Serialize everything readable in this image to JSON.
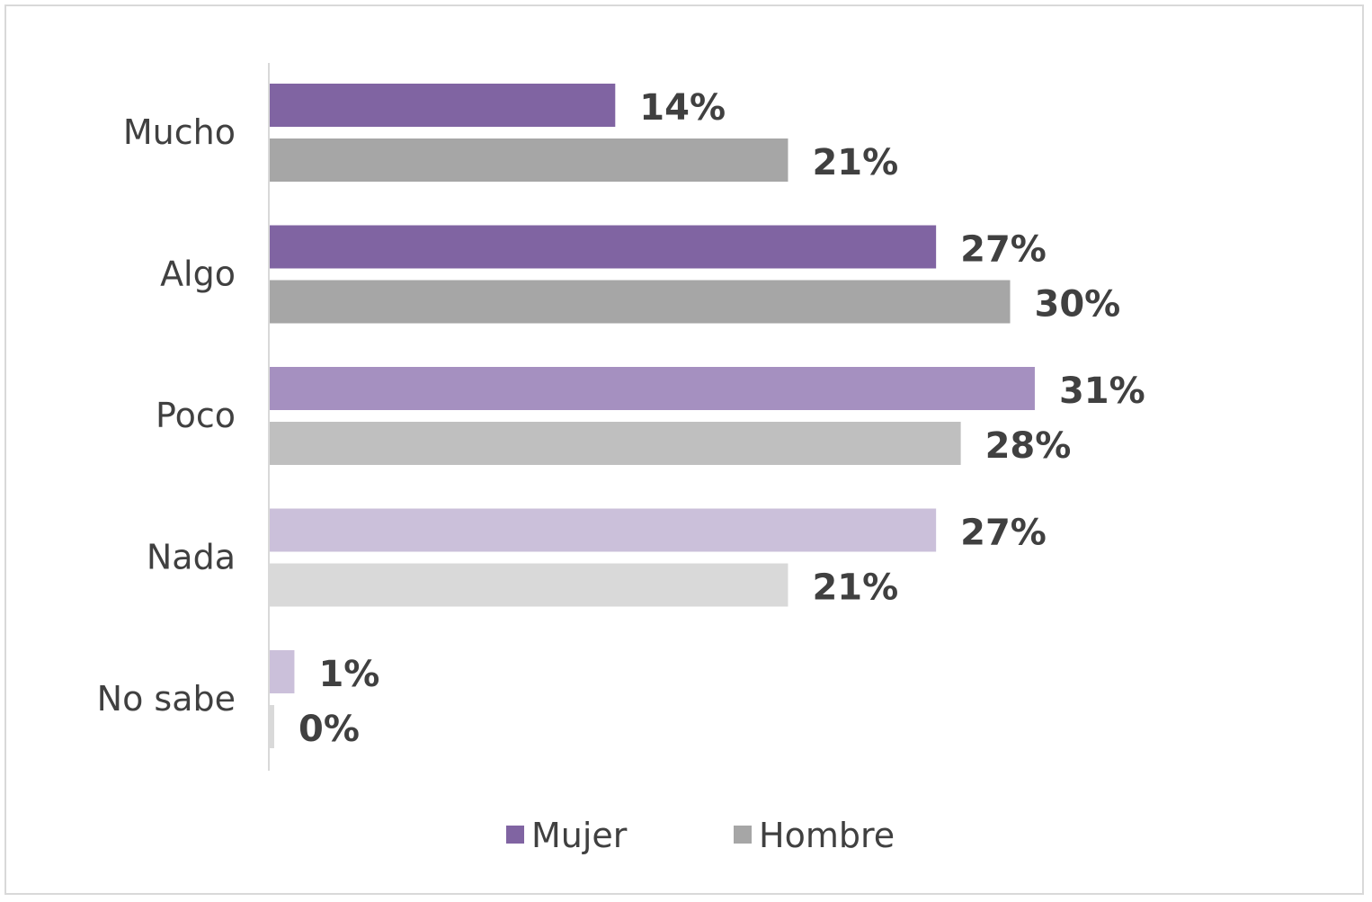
{
  "chart_data": {
    "type": "bar",
    "orientation": "horizontal",
    "categories": [
      "Mucho",
      "Algo",
      "Poco",
      "Nada",
      "No sabe"
    ],
    "series": [
      {
        "name": "Mujer",
        "values": [
          14,
          27,
          31,
          27,
          1
        ],
        "labels": [
          "14%",
          "27%",
          "31%",
          "27%",
          "1%"
        ],
        "colors": [
          "#8064A2",
          "#8064A2",
          "#A590C0",
          "#CBC0DA",
          "#CBC0DA"
        ],
        "legend_color": "#8064A2"
      },
      {
        "name": "Hombre",
        "values": [
          21,
          30,
          28,
          21,
          0
        ],
        "labels": [
          "21%",
          "30%",
          "28%",
          "21%",
          "0%"
        ],
        "colors": [
          "#A6A6A6",
          "#A6A6A6",
          "#BFBFBF",
          "#D9D9D9",
          "#D9D9D9"
        ],
        "legend_color": "#A6A6A6"
      }
    ],
    "xlabel": "",
    "ylabel": "",
    "xlim": [
      0,
      44
    ],
    "grid": false,
    "legend_position": "bottom",
    "data_labels": true
  }
}
